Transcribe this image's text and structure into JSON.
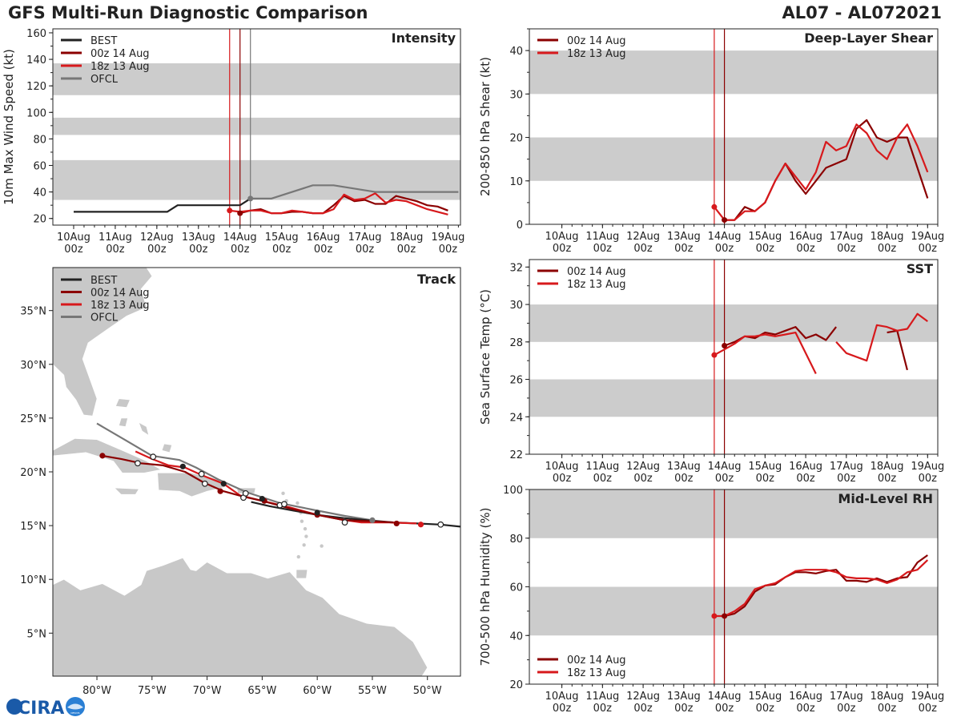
{
  "header": {
    "title": "GFS Multi-Run Diagnostic Comparison",
    "storm_id": "AL07 - AL072021"
  },
  "logo": {
    "text": "CIRA",
    "subtext": "NESDIS"
  },
  "colors": {
    "best": "#222222",
    "run_00z": "#8b0000",
    "run_18z": "#d7191c",
    "ofcl": "#777777",
    "band": "#cccccc",
    "land": "#c8c8c8"
  },
  "time_ticks": [
    {
      "line1": "10Aug",
      "line2": "00z"
    },
    {
      "line1": "11Aug",
      "line2": "00z"
    },
    {
      "line1": "12Aug",
      "line2": "00z"
    },
    {
      "line1": "13Aug",
      "line2": "00z"
    },
    {
      "line1": "14Aug",
      "line2": "00z"
    },
    {
      "line1": "15Aug",
      "line2": "00z"
    },
    {
      "line1": "16Aug",
      "line2": "00z"
    },
    {
      "line1": "17Aug",
      "line2": "00z"
    },
    {
      "line1": "18Aug",
      "line2": "00z"
    },
    {
      "line1": "19Aug",
      "line2": "00z"
    }
  ],
  "chart_data": [
    {
      "id": "intensity",
      "type": "line",
      "title": "Intensity",
      "ylabel": "10m Max Wind Speed (kt)",
      "xlim_days": [
        -0.5,
        9.3
      ],
      "ylim": [
        15,
        163
      ],
      "yticks": [
        20,
        40,
        60,
        80,
        100,
        120,
        140,
        160
      ],
      "bands": [
        [
          34,
          64
        ],
        [
          83,
          96
        ],
        [
          113,
          137
        ]
      ],
      "vlines": [
        {
          "x": 3.75,
          "color": "run_18z"
        },
        {
          "x": 4.0,
          "color": "run_00z"
        },
        {
          "x": 4.25,
          "color": "ofcl"
        }
      ],
      "legend": [
        "BEST",
        "00z 14 Aug",
        "18z 13 Aug",
        "OFCL"
      ],
      "series": [
        {
          "name": "BEST",
          "color": "best",
          "x": [
            0,
            0.5,
            1,
            1.5,
            2,
            2.25,
            2.5,
            3,
            3.5,
            4,
            4.25
          ],
          "y": [
            25,
            25,
            25,
            25,
            25,
            25,
            30,
            30,
            30,
            30,
            35
          ]
        },
        {
          "name": "00z 14 Aug",
          "color": "run_00z",
          "x": [
            4,
            4.25,
            4.5,
            4.75,
            5,
            5.25,
            5.5,
            5.75,
            6,
            6.25,
            6.5,
            6.75,
            7,
            7.25,
            7.5,
            7.75,
            8,
            8.25,
            8.5,
            8.75,
            9
          ],
          "y": [
            24,
            26,
            27,
            24,
            24,
            25,
            25,
            24,
            24,
            30,
            37,
            33,
            34,
            31,
            31,
            37,
            35,
            33,
            30,
            29,
            26
          ]
        },
        {
          "name": "18z 13 Aug",
          "color": "run_18z",
          "x": [
            3.75,
            4,
            4.25,
            4.5,
            4.75,
            5,
            5.25,
            5.5,
            5.75,
            6,
            6.25,
            6.5,
            6.75,
            7,
            7.25,
            7.5,
            7.75,
            8,
            8.25,
            8.5,
            8.75,
            9
          ],
          "y": [
            26,
            25,
            26,
            26,
            24,
            24,
            26,
            25,
            24,
            24,
            27,
            38,
            34,
            35,
            39,
            32,
            34,
            33,
            30,
            27,
            25,
            23
          ]
        },
        {
          "name": "OFCL",
          "color": "ofcl",
          "x": [
            4.25,
            4.75,
            5.75,
            6.25,
            7.25,
            8.25,
            9.25
          ],
          "y": [
            35,
            35,
            45,
            45,
            40,
            40,
            40
          ]
        }
      ],
      "markers": [
        {
          "series": "OFCL",
          "x": 4.25,
          "y": 35
        },
        {
          "series": "00z 14 Aug",
          "x": 4,
          "y": 24
        },
        {
          "series": "18z 13 Aug",
          "x": 3.75,
          "y": 26
        }
      ]
    },
    {
      "id": "shear",
      "type": "line",
      "title": "Deep-Layer Shear",
      "ylabel": "200-850 hPa Shear (kt)",
      "xlim_days": [
        -0.8,
        9.25
      ],
      "ylim": [
        0,
        45
      ],
      "yticks": [
        0,
        10,
        20,
        30,
        40
      ],
      "bands": [
        [
          10,
          20
        ],
        [
          30,
          40
        ]
      ],
      "vlines": [
        {
          "x": 3.75,
          "color": "run_18z"
        },
        {
          "x": 4.0,
          "color": "run_00z"
        }
      ],
      "legend": [
        "00z 14 Aug",
        "18z 13 Aug"
      ],
      "series": [
        {
          "name": "00z 14 Aug",
          "color": "run_00z",
          "x": [
            4,
            4.25,
            4.5,
            4.75,
            5,
            5.25,
            5.5,
            5.75,
            6,
            6.25,
            6.5,
            6.75,
            7,
            7.25,
            7.5,
            7.75,
            8,
            8.25,
            8.5,
            8.75,
            9
          ],
          "y": [
            1,
            1,
            4,
            3,
            5,
            10,
            14,
            10,
            7,
            10,
            13,
            14,
            15,
            22,
            24,
            20,
            19,
            20,
            20,
            13,
            6
          ]
        },
        {
          "name": "18z 13 Aug",
          "color": "run_18z",
          "x": [
            3.75,
            4,
            4.25,
            4.5,
            4.75,
            5,
            5.25,
            5.5,
            5.75,
            6,
            6.25,
            6.5,
            6.75,
            7,
            7.25,
            7.5,
            7.75,
            8,
            8.25,
            8.5,
            8.75,
            9
          ],
          "y": [
            4,
            1,
            1,
            3,
            3,
            5,
            10,
            14,
            11,
            8,
            12,
            19,
            17,
            18,
            23,
            21,
            17,
            15,
            20,
            23,
            18,
            12
          ]
        }
      ],
      "markers": [
        {
          "series": "00z 14 Aug",
          "x": 4,
          "y": 1
        },
        {
          "series": "18z 13 Aug",
          "x": 3.75,
          "y": 4
        }
      ]
    },
    {
      "id": "sst",
      "type": "line",
      "title": "SST",
      "ylabel": "Sea Surface Temp (°C)",
      "xlim_days": [
        -0.8,
        9.25
      ],
      "ylim": [
        22,
        32.4
      ],
      "yticks": [
        22,
        24,
        26,
        28,
        30,
        32
      ],
      "bands": [
        [
          24,
          26
        ],
        [
          28,
          30
        ]
      ],
      "vlines": [
        {
          "x": 3.75,
          "color": "run_18z"
        },
        {
          "x": 4.0,
          "color": "run_00z"
        }
      ],
      "legend": [
        "00z 14 Aug",
        "18z 13 Aug"
      ],
      "series": [
        {
          "name": "00z 14 Aug",
          "color": "run_00z",
          "segments": [
            {
              "x": [
                4,
                4.25,
                4.5,
                4.75,
                5,
                5.25,
                5.5,
                5.75,
                6,
                6.25,
                6.5,
                6.75
              ],
              "y": [
                27.8,
                28.0,
                28.3,
                28.2,
                28.5,
                28.4,
                28.6,
                28.8,
                28.2,
                28.4,
                28.1,
                28.8
              ]
            },
            {
              "x": [
                8,
                8.25,
                8.5
              ],
              "y": [
                28.5,
                28.6,
                26.5
              ]
            }
          ]
        },
        {
          "name": "18z 13 Aug",
          "color": "run_18z",
          "segments": [
            {
              "x": [
                3.75,
                4,
                4.25,
                4.5,
                4.75,
                5,
                5.25,
                5.5,
                5.75,
                6.25
              ],
              "y": [
                27.3,
                27.6,
                27.9,
                28.3,
                28.3,
                28.4,
                28.3,
                28.4,
                28.5,
                26.3
              ]
            },
            {
              "x": [
                6.75,
                7,
                7.5,
                7.75,
                8,
                8.25,
                8.5,
                8.75,
                9
              ],
              "y": [
                28.0,
                27.4,
                27.0,
                28.9,
                28.8,
                28.6,
                28.7,
                29.5,
                29.1
              ]
            }
          ]
        }
      ],
      "markers": [
        {
          "series": "00z 14 Aug",
          "x": 4,
          "y": 27.8
        },
        {
          "series": "18z 13 Aug",
          "x": 3.75,
          "y": 27.3
        }
      ]
    },
    {
      "id": "rh",
      "type": "line",
      "title": "Mid-Level RH",
      "ylabel": "700-500 hPa Humidity (%)",
      "xlim_days": [
        -0.8,
        9.25
      ],
      "ylim": [
        20,
        100
      ],
      "yticks": [
        20,
        40,
        60,
        80,
        100
      ],
      "bands": [
        [
          40,
          60
        ],
        [
          80,
          100
        ]
      ],
      "vlines": [
        {
          "x": 3.75,
          "color": "run_18z"
        },
        {
          "x": 4.0,
          "color": "run_00z"
        }
      ],
      "legend": [
        "00z 14 Aug",
        "18z 13 Aug"
      ],
      "series": [
        {
          "name": "00z 14 Aug",
          "color": "run_00z",
          "x": [
            4,
            4.25,
            4.5,
            4.75,
            5,
            5.25,
            5.5,
            5.75,
            6,
            6.25,
            6.5,
            6.75,
            7,
            7.25,
            7.5,
            7.75,
            8,
            8.25,
            8.5,
            8.75,
            9
          ],
          "y": [
            48,
            49,
            52,
            58,
            60.5,
            61,
            64,
            66,
            66,
            65.5,
            66.5,
            67,
            62.5,
            62.5,
            62,
            63.5,
            62,
            63.5,
            64,
            70,
            73
          ]
        },
        {
          "name": "18z 13 Aug",
          "color": "run_18z",
          "x": [
            3.75,
            4,
            4.25,
            4.5,
            4.75,
            5,
            5.25,
            5.5,
            5.75,
            6,
            6.25,
            6.5,
            6.75,
            7,
            7.25,
            7.5,
            7.75,
            8,
            8.25,
            8.5,
            8.75,
            9
          ],
          "y": [
            48,
            48,
            50,
            53,
            59,
            60.5,
            61.5,
            64,
            66.5,
            67,
            67,
            67,
            66,
            64,
            63.5,
            63.5,
            63,
            61.5,
            63,
            66,
            67,
            71
          ]
        }
      ],
      "markers": [
        {
          "series": "00z 14 Aug",
          "x": 4,
          "y": 48
        },
        {
          "series": "18z 13 Aug",
          "x": 3.75,
          "y": 48
        }
      ]
    },
    {
      "id": "track",
      "type": "scatter",
      "title": "Track",
      "xlim_lon": [
        -84,
        -47
      ],
      "ylim_lat": [
        1,
        39
      ],
      "xticks": [
        -80,
        -75,
        -70,
        -65,
        -60,
        -55,
        -50
      ],
      "xtick_labels": [
        "80°W",
        "75°W",
        "70°W",
        "65°W",
        "60°W",
        "55°W",
        "50°W"
      ],
      "yticks": [
        5,
        10,
        15,
        20,
        25,
        30,
        35
      ],
      "ytick_labels": [
        "5°N",
        "10°N",
        "15°N",
        "20°N",
        "25°N",
        "30°N",
        "35°N"
      ],
      "legend": [
        "BEST",
        "00z 14 Aug",
        "18z 13 Aug",
        "OFCL"
      ],
      "series": [
        {
          "name": "BEST",
          "color": "best",
          "lon": [
            -47.0,
            -48.8,
            -51.0,
            -53.1,
            -55.5,
            -57.6,
            -60.0,
            -62.2,
            -64.3,
            -66.0
          ],
          "lat": [
            14.9,
            15.1,
            15.2,
            15.3,
            15.5,
            15.7,
            16.0,
            16.4,
            16.8,
            17.2
          ]
        },
        {
          "name": "00z 14 Aug",
          "color": "run_00z",
          "lon": [
            -53.1,
            -55.0,
            -57.5,
            -60.0,
            -62.5,
            -65.0,
            -66.7,
            -68.5,
            -70.3,
            -72.0,
            -74.0,
            -76.0,
            -77.8,
            -79.5
          ],
          "lat": [
            15.3,
            15.4,
            15.5,
            16.0,
            16.6,
            17.3,
            17.7,
            18.2,
            19.0,
            20.0,
            20.6,
            20.8,
            21.2,
            21.5
          ]
        },
        {
          "name": "18z 13 Aug",
          "color": "run_18z",
          "lon": [
            -51.0,
            -53.5,
            -56.0,
            -58.0,
            -60.0,
            -62.5,
            -65.0,
            -67.0,
            -68.5,
            -70.5,
            -72.0,
            -73.5,
            -75.0,
            -76.5
          ],
          "lat": [
            15.2,
            15.3,
            15.3,
            15.6,
            16.0,
            16.7,
            17.3,
            17.8,
            18.9,
            19.7,
            20.4,
            20.6,
            21.2,
            21.9
          ]
        },
        {
          "name": "OFCL",
          "color": "ofcl",
          "lon": [
            -55.0,
            -57.5,
            -60.5,
            -63.4,
            -66.4,
            -69.0,
            -71.0,
            -72.5,
            -75.0,
            -77.5,
            -80.0
          ],
          "lat": [
            15.5,
            15.9,
            16.5,
            17.1,
            18.1,
            19.3,
            20.4,
            21.1,
            21.5,
            23.0,
            24.5
          ]
        }
      ],
      "markers": [
        {
          "series": "run_00z",
          "type": "filled",
          "lon": -52.8,
          "lat": 15.2
        },
        {
          "series": "run_00z",
          "type": "filled",
          "lon": -60.0,
          "lat": 16.0
        },
        {
          "series": "run_00z",
          "type": "filled",
          "lon": -64.8,
          "lat": 17.3
        },
        {
          "series": "run_00z",
          "type": "filled",
          "lon": -68.8,
          "lat": 18.2
        },
        {
          "series": "run_00z",
          "type": "filled",
          "lon": -79.5,
          "lat": 21.5
        },
        {
          "series": "run_18z",
          "type": "filled",
          "lon": -50.6,
          "lat": 15.1
        },
        {
          "series": "best",
          "type": "filled",
          "lon": -60.0,
          "lat": 16.2
        },
        {
          "series": "best",
          "type": "filled",
          "lon": -65.0,
          "lat": 17.5
        },
        {
          "series": "best",
          "type": "filled",
          "lon": -68.5,
          "lat": 18.9
        },
        {
          "series": "best",
          "type": "filled",
          "lon": -72.2,
          "lat": 20.5
        },
        {
          "series": "run_18z",
          "type": "open",
          "lon": -48.8,
          "lat": 15.1
        },
        {
          "series": "run_18z",
          "type": "open",
          "lon": -57.5,
          "lat": 15.3
        },
        {
          "series": "run_18z",
          "type": "open",
          "lon": -63.4,
          "lat": 16.9
        },
        {
          "series": "run_18z",
          "type": "open",
          "lon": -66.7,
          "lat": 17.6
        },
        {
          "series": "run_18z",
          "type": "open",
          "lon": -70.2,
          "lat": 18.9
        },
        {
          "series": "run_18z",
          "type": "open",
          "lon": -70.5,
          "lat": 19.8
        },
        {
          "series": "run_18z",
          "type": "open",
          "lon": -74.9,
          "lat": 21.4
        },
        {
          "series": "run_18z",
          "type": "open",
          "lon": -76.3,
          "lat": 20.8
        },
        {
          "series": "ofcl",
          "type": "open",
          "lon": -63.0,
          "lat": 17.0
        },
        {
          "series": "ofcl",
          "type": "open",
          "lon": -66.5,
          "lat": 18.0
        },
        {
          "series": "ofcl",
          "type": "filled",
          "lon": -55.0,
          "lat": 15.5
        }
      ]
    }
  ]
}
